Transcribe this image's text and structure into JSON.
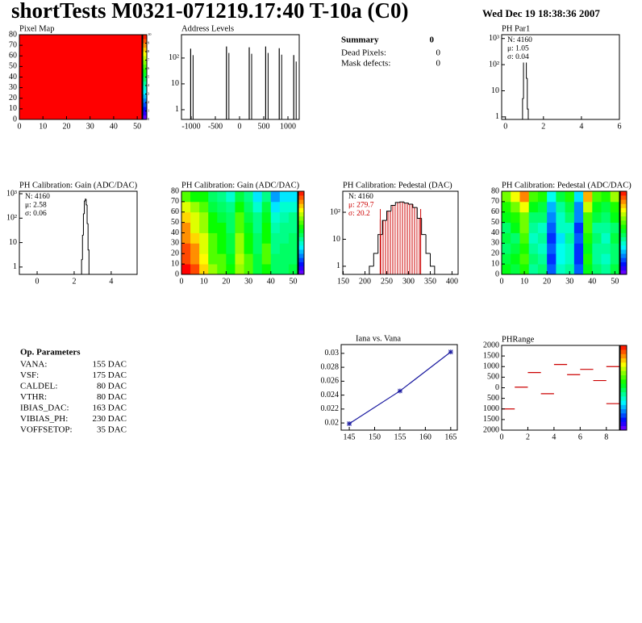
{
  "header": {
    "title": "shortTests M0321-071219.17:40 T-10a (C0)",
    "date": "Wed Dec 19 18:38:36 2007"
  },
  "summary": {
    "title": "Summary",
    "value": "0",
    "rows": [
      [
        "Dead Pixels:",
        "0"
      ],
      [
        "Mask defects:",
        "0"
      ]
    ]
  },
  "op_parameters": {
    "title": "Op. Parameters",
    "rows": [
      [
        "VANA:",
        "155 DAC"
      ],
      [
        "VSF:",
        "175 DAC"
      ],
      [
        "CALDEL:",
        "80 DAC"
      ],
      [
        "VTHR:",
        "80 DAC"
      ],
      [
        "IBIAS_DAC:",
        "163 DAC"
      ],
      [
        "VIBIAS_PH:",
        "230 DAC"
      ],
      [
        "VOFFSETOP:",
        "35 DAC"
      ]
    ]
  },
  "chart_data": [
    {
      "type": "heatmap",
      "title": "Pixel Map",
      "xlim": [
        0,
        52
      ],
      "ylim": [
        0,
        80
      ],
      "xticks": [
        0,
        10,
        20,
        30,
        40,
        50
      ],
      "yticks": [
        0,
        10,
        20,
        30,
        40,
        50,
        60,
        70,
        80
      ],
      "z": [
        [
          10
        ]
      ],
      "zlim": [
        0,
        10
      ],
      "zticks": [
        0,
        1,
        2,
        3,
        4,
        5,
        6,
        7,
        8,
        9,
        10
      ]
    },
    {
      "type": "spikes",
      "title": "Address Levels",
      "log_y": true,
      "xlim": [
        -1200,
        1233
      ],
      "ylim": [
        0.42,
        800
      ],
      "xticks": [
        -1000,
        -500,
        0,
        500,
        1000
      ],
      "yticks": [
        1,
        10,
        {
          "value": 100,
          "label": "10²"
        }
      ],
      "x": [
        -1010,
        -270,
        200,
        540,
        820,
        1120
      ],
      "values": [
        230,
        280,
        260,
        280,
        240,
        130
      ],
      "color": "#000000"
    },
    {
      "type": "histogram",
      "title": "PH Par1",
      "log_y": true,
      "xlim": [
        -0.2,
        6
      ],
      "ylim": [
        0.8,
        1400
      ],
      "xticks": [
        0,
        2,
        4,
        6
      ],
      "yticks": [
        1,
        10,
        {
          "value": 100,
          "label": "10²"
        },
        {
          "value": 1000,
          "label": "10³"
        }
      ],
      "bins": [
        0.9,
        0.95,
        1.0,
        1.05,
        1.1,
        1.15,
        1.2
      ],
      "values": [
        5,
        300,
        750,
        500,
        30,
        2
      ],
      "stats": [
        "N: 4160",
        "μ: 1.05",
        "σ: 0.04"
      ],
      "stats_colors": [
        "#000000",
        "#000000",
        "#000000"
      ]
    },
    {
      "type": "histogram",
      "title": "PH Calibration: Gain (ADC/DAC)",
      "log_y": true,
      "xlim": [
        -0.96,
        5.4
      ],
      "ylim": [
        0.5,
        1260
      ],
      "xticks": [
        0,
        2,
        4
      ],
      "yticks": [
        1,
        10,
        {
          "value": 100,
          "label": "10²"
        },
        {
          "value": 1000,
          "label": "10³"
        }
      ],
      "bins": [
        2.4,
        2.45,
        2.5,
        2.55,
        2.6,
        2.65,
        2.7,
        2.75,
        2.8
      ],
      "values": [
        2,
        20,
        150,
        500,
        600,
        350,
        60,
        5
      ],
      "stats": [
        "N: 4160",
        "μ: 2.58",
        "σ: 0.06"
      ],
      "stats_colors": [
        "#000000",
        "#000000",
        "#000000"
      ]
    },
    {
      "type": "heatmap",
      "title": "PH Calibration: Gain (ADC/DAC)",
      "xlim": [
        0,
        52
      ],
      "ylim": [
        0,
        80
      ],
      "xticks": [
        0,
        10,
        20,
        30,
        40,
        50
      ],
      "yticks": [
        0,
        10,
        20,
        30,
        40,
        50,
        60,
        70,
        80
      ],
      "zlim": [
        2.4,
        2.72
      ],
      "z": [
        [
          2.72,
          2.7,
          2.66,
          2.62,
          2.6,
          2.58,
          2.62,
          2.6,
          2.56,
          2.58,
          2.55,
          2.55,
          2.56
        ],
        [
          2.7,
          2.68,
          2.65,
          2.6,
          2.6,
          2.57,
          2.63,
          2.6,
          2.56,
          2.6,
          2.55,
          2.55,
          2.55
        ],
        [
          2.7,
          2.68,
          2.64,
          2.6,
          2.58,
          2.56,
          2.62,
          2.58,
          2.55,
          2.6,
          2.54,
          2.55,
          2.55
        ],
        [
          2.68,
          2.66,
          2.64,
          2.6,
          2.58,
          2.56,
          2.62,
          2.58,
          2.55,
          2.58,
          2.54,
          2.54,
          2.55
        ],
        [
          2.68,
          2.64,
          2.62,
          2.58,
          2.58,
          2.55,
          2.6,
          2.57,
          2.54,
          2.58,
          2.53,
          2.54,
          2.54
        ],
        [
          2.66,
          2.64,
          2.62,
          2.58,
          2.56,
          2.55,
          2.6,
          2.56,
          2.54,
          2.57,
          2.52,
          2.53,
          2.54
        ],
        [
          2.64,
          2.62,
          2.6,
          2.56,
          2.55,
          2.54,
          2.58,
          2.55,
          2.52,
          2.56,
          2.5,
          2.52,
          2.52
        ],
        [
          2.6,
          2.58,
          2.58,
          2.55,
          2.54,
          2.52,
          2.56,
          2.54,
          2.5,
          2.54,
          2.48,
          2.5,
          2.5
        ]
      ]
    },
    {
      "type": "histogram",
      "title": "PH Calibration: Pedestal (DAC)",
      "log_y": true,
      "xlim": [
        149,
        414
      ],
      "ylim": [
        0.5,
        600
      ],
      "xticks": [
        150,
        200,
        250,
        300,
        350,
        400
      ],
      "yticks": [
        1,
        10,
        {
          "value": 100,
          "label": "10²"
        }
      ],
      "bins": [
        210,
        220,
        230,
        240,
        250,
        260,
        270,
        280,
        290,
        300,
        310,
        320,
        330,
        340,
        350,
        360
      ],
      "values": [
        1,
        3,
        15,
        50,
        110,
        180,
        230,
        240,
        220,
        200,
        150,
        60,
        15,
        3,
        1
      ],
      "fit_range": [
        235,
        328
      ],
      "fit_color": "#cc0000",
      "stats": [
        "N: 4160",
        "μ: 279.7",
        "σ: 20.2"
      ],
      "stats_colors": [
        "#000000",
        "#cc0000",
        "#cc0000"
      ]
    },
    {
      "type": "heatmap",
      "title": "PH Calibration: Pedestal (ADC/DAC)",
      "xlim": [
        0,
        52
      ],
      "ylim": [
        0,
        80
      ],
      "xticks": [
        0,
        10,
        20,
        30,
        40,
        50
      ],
      "yticks": [
        0,
        10,
        20,
        30,
        40,
        50,
        60,
        70,
        80
      ],
      "zlim": [
        220,
        350
      ],
      "z": [
        [
          290,
          285,
          295,
          275,
          280,
          245,
          270,
          275,
          245,
          290,
          280,
          275,
          285
        ],
        [
          285,
          290,
          300,
          280,
          275,
          240,
          265,
          270,
          240,
          295,
          275,
          270,
          280
        ],
        [
          280,
          285,
          295,
          275,
          270,
          245,
          265,
          270,
          240,
          290,
          275,
          275,
          280
        ],
        [
          285,
          280,
          300,
          270,
          275,
          240,
          260,
          275,
          245,
          295,
          280,
          270,
          285
        ],
        [
          280,
          290,
          305,
          275,
          270,
          245,
          270,
          270,
          240,
          300,
          275,
          275,
          280
        ],
        [
          290,
          295,
          305,
          280,
          280,
          250,
          270,
          280,
          250,
          300,
          285,
          280,
          290
        ],
        [
          295,
          305,
          320,
          290,
          285,
          255,
          275,
          285,
          250,
          315,
          290,
          285,
          295
        ],
        [
          305,
          320,
          335,
          300,
          295,
          265,
          285,
          295,
          260,
          330,
          300,
          295,
          310
        ]
      ]
    },
    {
      "type": "line",
      "title": "Iana vs. Vana",
      "xlim": [
        143.4,
        166.3
      ],
      "ylim": [
        0.01897,
        0.03126
      ],
      "xticks": [
        145,
        150,
        155,
        160,
        165
      ],
      "yticks": [
        0.02,
        0.022,
        0.024,
        0.026,
        0.028,
        0.03
      ],
      "x": [
        145,
        155,
        165
      ],
      "values": [
        0.0199,
        0.0246,
        0.0302
      ],
      "color": "#1a1aa0"
    },
    {
      "type": "segments",
      "title": "PHRange",
      "xlim": [
        0,
        9
      ],
      "ylim": [
        -2000,
        2000
      ],
      "xticks": [
        0,
        2,
        4,
        6,
        8
      ],
      "yticks": [
        2000,
        1500,
        1000,
        500,
        0,
        {
          "value": -500,
          "label": "500"
        },
        {
          "value": -1000,
          "label": "1000"
        },
        {
          "value": -1500,
          "label": "1500"
        },
        {
          "value": -2000,
          "label": "2000"
        }
      ],
      "x": [
        0,
        1,
        2,
        3,
        4,
        5,
        6,
        7,
        8,
        8
      ],
      "values": [
        -1000,
        30,
        720,
        -280,
        1100,
        620,
        870,
        340,
        1000,
        -750
      ],
      "color": "#cc0000",
      "zlim": [
        0,
        1
      ]
    }
  ]
}
